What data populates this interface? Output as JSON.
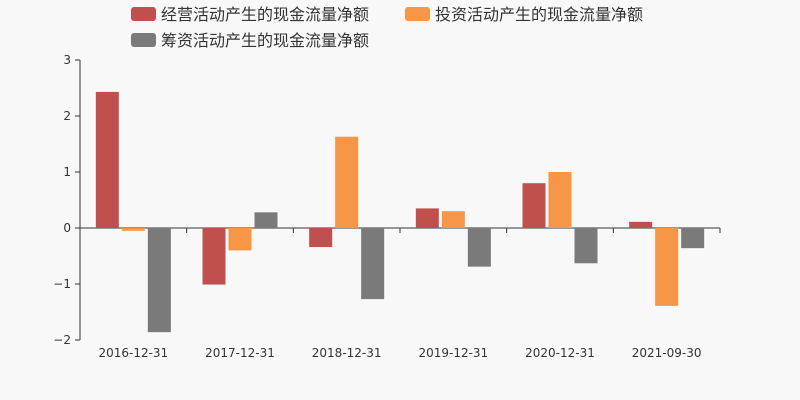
{
  "chart_data": {
    "type": "bar",
    "categories": [
      "2016-12-31",
      "2017-12-31",
      "2018-12-31",
      "2019-12-31",
      "2020-12-31",
      "2021-09-30"
    ],
    "series": [
      {
        "name": "经营活动产生的现金流量净额",
        "color": "#c0504d",
        "values": [
          2.43,
          -1.01,
          -0.34,
          0.35,
          0.8,
          0.11
        ]
      },
      {
        "name": "投资活动产生的现金流量净额",
        "color": "#f79646",
        "values": [
          -0.05,
          -0.4,
          1.63,
          0.3,
          1.0,
          -1.39
        ]
      },
      {
        "name": "筹资活动产生的现金流量净额",
        "color": "#7a7a7a",
        "values": [
          -1.86,
          0.28,
          -1.27,
          -0.69,
          -0.63,
          -0.36
        ]
      }
    ],
    "ylim": [
      -2,
      3
    ],
    "yticks": [
      -2,
      -1,
      0,
      1,
      2,
      3
    ],
    "ytick_labels": [
      "−2",
      "−1",
      "0",
      "1",
      "2",
      "3"
    ],
    "legend_position": "top-center",
    "grid": false
  }
}
